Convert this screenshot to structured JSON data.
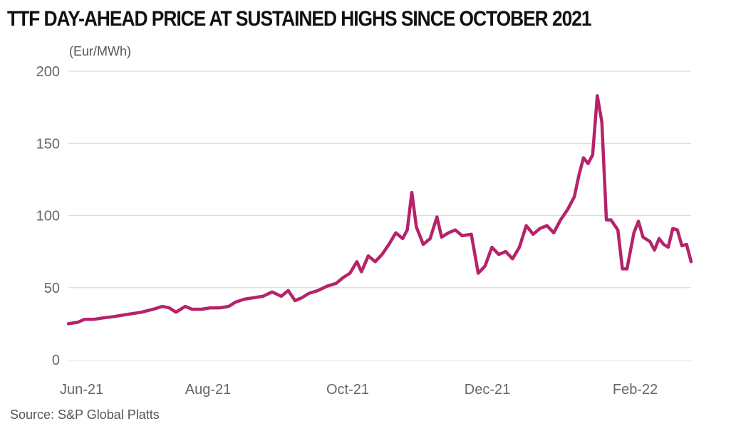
{
  "chart_data": {
    "type": "line",
    "title": "TTF DAY-AHEAD PRICE AT SUSTAINED HIGHS SINCE OCTOBER 2021",
    "ylabel": "(Eur/MWh)",
    "xlabel": "",
    "source": "Source: S&P Global Platts",
    "ylim": [
      0,
      200
    ],
    "yticks": [
      0,
      50,
      100,
      150,
      200
    ],
    "xlim": [
      "2021-06-01",
      "2022-02-28"
    ],
    "xticks": [
      {
        "label": "Jun-21",
        "date": "2021-06-01"
      },
      {
        "label": "Aug-21",
        "date": "2021-08-01"
      },
      {
        "label": "Oct-21",
        "date": "2021-10-01"
      },
      {
        "label": "Dec-21",
        "date": "2021-12-01"
      },
      {
        "label": "Feb-22",
        "date": "2022-02-01"
      }
    ],
    "grid": true,
    "line_color": "#B5236A",
    "series": [
      {
        "points": [
          [
            "2021-06-01",
            25
          ],
          [
            "2021-06-05",
            26
          ],
          [
            "2021-06-08",
            28
          ],
          [
            "2021-06-12",
            28
          ],
          [
            "2021-06-16",
            29
          ],
          [
            "2021-06-21",
            30
          ],
          [
            "2021-06-25",
            31
          ],
          [
            "2021-06-29",
            32
          ],
          [
            "2021-07-03",
            33
          ],
          [
            "2021-07-08",
            35
          ],
          [
            "2021-07-12",
            37
          ],
          [
            "2021-07-15",
            36
          ],
          [
            "2021-07-18",
            33
          ],
          [
            "2021-07-22",
            37
          ],
          [
            "2021-07-25",
            35
          ],
          [
            "2021-07-29",
            35
          ],
          [
            "2021-08-02",
            36
          ],
          [
            "2021-08-06",
            36
          ],
          [
            "2021-08-10",
            37
          ],
          [
            "2021-08-13",
            40
          ],
          [
            "2021-08-17",
            42
          ],
          [
            "2021-08-21",
            43
          ],
          [
            "2021-08-25",
            44
          ],
          [
            "2021-08-29",
            47
          ],
          [
            "2021-09-02",
            44
          ],
          [
            "2021-09-05",
            48
          ],
          [
            "2021-09-08",
            41
          ],
          [
            "2021-09-11",
            43
          ],
          [
            "2021-09-14",
            46
          ],
          [
            "2021-09-18",
            48
          ],
          [
            "2021-09-22",
            51
          ],
          [
            "2021-09-26",
            53
          ],
          [
            "2021-09-29",
            57
          ],
          [
            "2021-10-02",
            60
          ],
          [
            "2021-10-05",
            68
          ],
          [
            "2021-10-07",
            61
          ],
          [
            "2021-10-10",
            72
          ],
          [
            "2021-10-13",
            68
          ],
          [
            "2021-10-16",
            73
          ],
          [
            "2021-10-19",
            80
          ],
          [
            "2021-10-22",
            88
          ],
          [
            "2021-10-25",
            84
          ],
          [
            "2021-10-27",
            90
          ],
          [
            "2021-10-29",
            116
          ],
          [
            "2021-10-31",
            92
          ],
          [
            "2021-11-03",
            80
          ],
          [
            "2021-11-06",
            84
          ],
          [
            "2021-11-09",
            99
          ],
          [
            "2021-11-11",
            85
          ],
          [
            "2021-11-14",
            88
          ],
          [
            "2021-11-17",
            90
          ],
          [
            "2021-11-20",
            86
          ],
          [
            "2021-11-24",
            87
          ],
          [
            "2021-11-27",
            60
          ],
          [
            "2021-11-30",
            65
          ],
          [
            "2021-12-03",
            78
          ],
          [
            "2021-12-06",
            73
          ],
          [
            "2021-12-09",
            75
          ],
          [
            "2021-12-12",
            70
          ],
          [
            "2021-12-15",
            78
          ],
          [
            "2021-12-18",
            93
          ],
          [
            "2021-12-21",
            87
          ],
          [
            "2021-12-24",
            91
          ],
          [
            "2021-12-27",
            93
          ],
          [
            "2021-12-30",
            88
          ],
          [
            "2022-01-02",
            97
          ],
          [
            "2022-01-05",
            104
          ],
          [
            "2022-01-08",
            113
          ],
          [
            "2022-01-10",
            128
          ],
          [
            "2022-01-12",
            140
          ],
          [
            "2022-01-14",
            136
          ],
          [
            "2022-01-16",
            142
          ],
          [
            "2022-01-18",
            183
          ],
          [
            "2022-01-20",
            165
          ],
          [
            "2022-01-22",
            97
          ],
          [
            "2022-01-24",
            97
          ],
          [
            "2022-01-27",
            90
          ],
          [
            "2022-01-29",
            63
          ],
          [
            "2022-01-31",
            63
          ],
          [
            "2022-02-03",
            88
          ],
          [
            "2022-02-05",
            96
          ],
          [
            "2022-02-07",
            85
          ],
          [
            "2022-02-10",
            82
          ],
          [
            "2022-02-12",
            76
          ],
          [
            "2022-02-14",
            84
          ],
          [
            "2022-02-16",
            80
          ],
          [
            "2022-02-18",
            78
          ],
          [
            "2022-02-20",
            91
          ],
          [
            "2022-02-22",
            90
          ],
          [
            "2022-02-24",
            79
          ],
          [
            "2022-02-26",
            80
          ],
          [
            "2022-02-28",
            68
          ]
        ]
      }
    ]
  }
}
